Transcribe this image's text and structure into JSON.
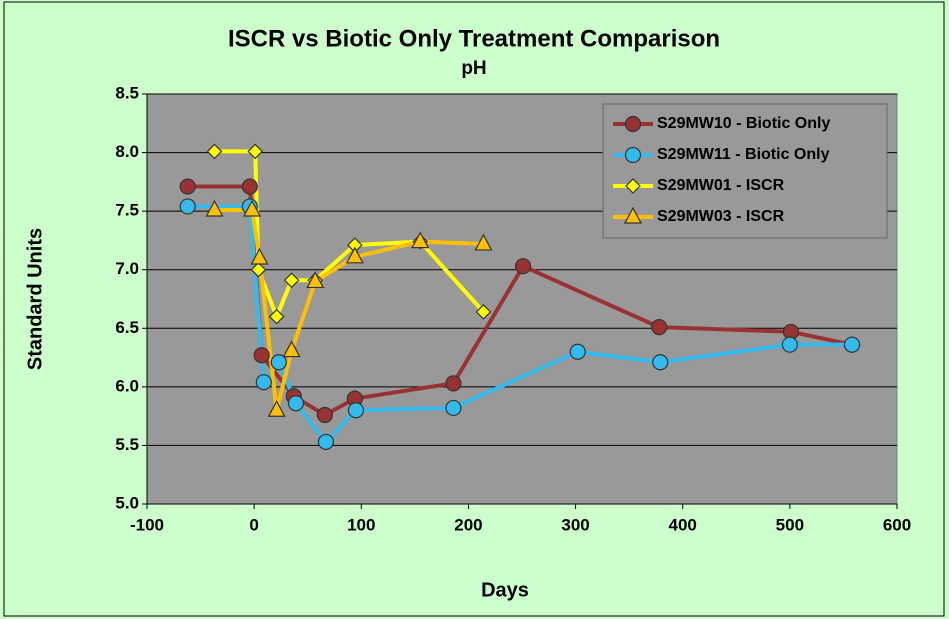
{
  "chart_data": {
    "type": "line",
    "title": "ISCR vs Biotic Only Treatment Comparison",
    "subtitle": "pH",
    "x_label": "Days",
    "y_label": "Standard Units",
    "xlim": [
      -100,
      600
    ],
    "xticks": [
      -100,
      0,
      100,
      200,
      300,
      400,
      500,
      600
    ],
    "ylim": [
      5.0,
      8.5
    ],
    "yticks": [
      {
        "value": 5,
        "label": "5.0"
      },
      5.5,
      {
        "value": 6,
        "label": "6.0"
      },
      6.5,
      {
        "value": 7,
        "label": "7.0"
      },
      7.5,
      {
        "value": 8,
        "label": "8.0"
      },
      8.5
    ],
    "grid": true,
    "legend": "upper right",
    "series": [
      {
        "name": "S29MW10 - Biotic Only",
        "color": "#993333",
        "marker": "circle",
        "x": [
          -62,
          -4,
          7,
          37,
          66,
          94,
          186,
          251,
          378,
          501,
          558
        ],
        "values": [
          7.71,
          7.71,
          6.27,
          5.92,
          5.76,
          5.9,
          6.03,
          7.03,
          6.51,
          6.47,
          6.36
        ]
      },
      {
        "name": "S29MW11 - Biotic Only",
        "color": "#33bbee",
        "marker": "circle",
        "x": [
          -62,
          -4,
          9,
          23,
          39,
          67,
          95,
          186,
          302,
          379,
          500,
          558
        ],
        "values": [
          7.54,
          7.54,
          6.04,
          6.21,
          5.86,
          5.53,
          5.8,
          5.82,
          6.3,
          6.21,
          6.36,
          6.36
        ]
      },
      {
        "name": "S29MW01 - ISCR",
        "color": "#ffff00",
        "marker": "diamond",
        "x": [
          -37,
          1,
          4,
          21,
          35,
          57,
          94,
          155,
          214
        ],
        "values": [
          8.01,
          8.01,
          7.0,
          6.6,
          6.91,
          6.91,
          7.21,
          7.24,
          6.64
        ]
      },
      {
        "name": "S29MW03 - ISCR",
        "color": "#ffc000",
        "marker": "triangle",
        "x": [
          -37,
          -2,
          5,
          21,
          35,
          57,
          94,
          155,
          214
        ],
        "values": [
          7.51,
          7.51,
          7.1,
          5.8,
          6.31,
          6.9,
          7.11,
          7.24,
          7.22
        ]
      }
    ]
  }
}
